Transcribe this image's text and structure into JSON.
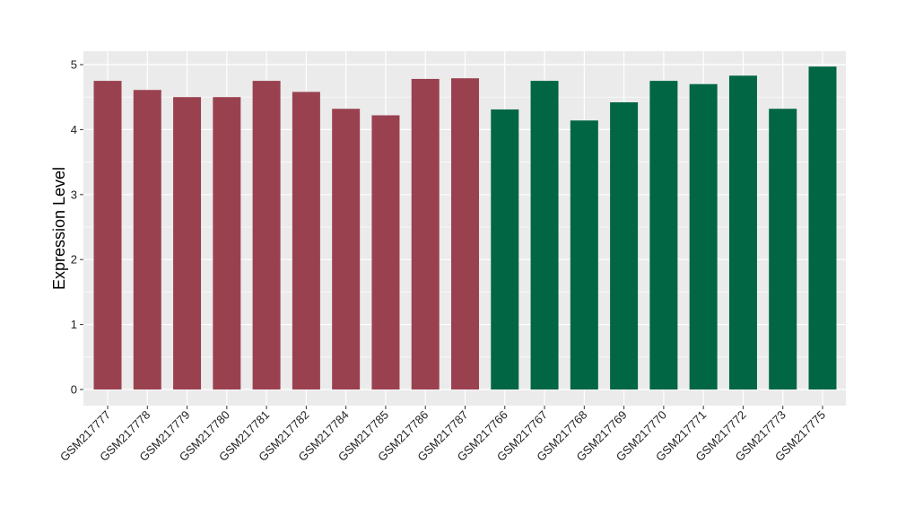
{
  "chart_data": {
    "type": "bar",
    "title": "",
    "xlabel": "",
    "ylabel": "Expression Level",
    "ylim": [
      0,
      5
    ],
    "yticks": [
      0,
      1,
      2,
      3,
      4,
      5
    ],
    "grid": true,
    "legend": "none",
    "categories": [
      "GSM217777",
      "GSM217778",
      "GSM217779",
      "GSM217780",
      "GSM217781",
      "GSM217782",
      "GSM217784",
      "GSM217785",
      "GSM217786",
      "GSM217787",
      "GSM217766",
      "GSM217767",
      "GSM217768",
      "GSM217769",
      "GSM217770",
      "GSM217771",
      "GSM217772",
      "GSM217773",
      "GSM217775"
    ],
    "values": [
      4.75,
      4.61,
      4.5,
      4.5,
      4.75,
      4.58,
      4.32,
      4.22,
      4.78,
      4.79,
      4.31,
      4.75,
      4.14,
      4.42,
      4.75,
      4.7,
      4.83,
      4.32,
      4.97
    ],
    "groups": [
      "a",
      "a",
      "a",
      "a",
      "a",
      "a",
      "a",
      "a",
      "a",
      "a",
      "b",
      "b",
      "b",
      "b",
      "b",
      "b",
      "b",
      "b",
      "b"
    ],
    "group_colors": {
      "a": "#9a4150",
      "b": "#006644"
    },
    "colors": {
      "panel_background": "#ebebeb",
      "gridline": "#ffffff",
      "tick_text": "#222222"
    }
  }
}
